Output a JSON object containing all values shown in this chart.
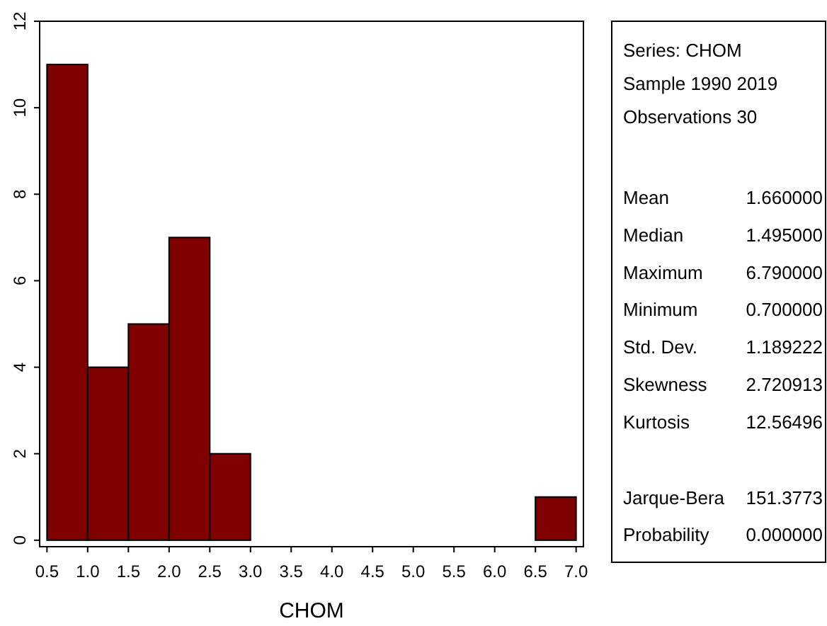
{
  "chart_data": [
    {
      "type": "histogram",
      "xlabel": "CHOM",
      "bins": [
        0.5,
        1.0,
        1.5,
        2.0,
        2.5,
        3.0,
        3.5,
        4.0,
        4.5,
        5.0,
        5.5,
        6.0,
        6.5,
        7.0
      ],
      "values": [
        11,
        4,
        5,
        7,
        2,
        0,
        0,
        0,
        0,
        0,
        0,
        0,
        1
      ],
      "color": "#800000",
      "xlim": [
        0.41,
        7.09
      ],
      "xticks": [
        {
          "value": 0.5,
          "label": "0.5"
        },
        {
          "value": 1.0,
          "label": "1.0"
        },
        {
          "value": 1.5,
          "label": "1.5"
        },
        {
          "value": 2.0,
          "label": "2.0"
        },
        {
          "value": 2.5,
          "label": "2.5"
        },
        {
          "value": 3.0,
          "label": "3.0"
        },
        {
          "value": 3.5,
          "label": "3.5"
        },
        {
          "value": 4.0,
          "label": "4.0"
        },
        {
          "value": 4.5,
          "label": "4.5"
        },
        {
          "value": 5.0,
          "label": "5.0"
        },
        {
          "value": 5.5,
          "label": "5.5"
        },
        {
          "value": 6.0,
          "label": "6.0"
        },
        {
          "value": 6.5,
          "label": "6.5"
        },
        {
          "value": 7.0,
          "label": "7.0"
        }
      ],
      "ylim": [
        -0.15,
        12
      ],
      "yticks": [
        0,
        2,
        4,
        6,
        8,
        10,
        12
      ],
      "grid": false
    },
    {
      "type": "other",
      "annotations": [
        "Series: CHOM",
        "Sample 1990 2019",
        "Observations 30",
        "Mean",
        "1.660000",
        "Median",
        "1.495000",
        "Maximum",
        "6.790000",
        "Minimum",
        "0.700000",
        "Std. Dev.",
        "1.189222",
        "Skewness",
        "2.720913",
        "Kurtosis",
        "12.56496",
        "Jarque-Bera",
        "151.3773",
        "Probability",
        "0.000000"
      ]
    }
  ]
}
